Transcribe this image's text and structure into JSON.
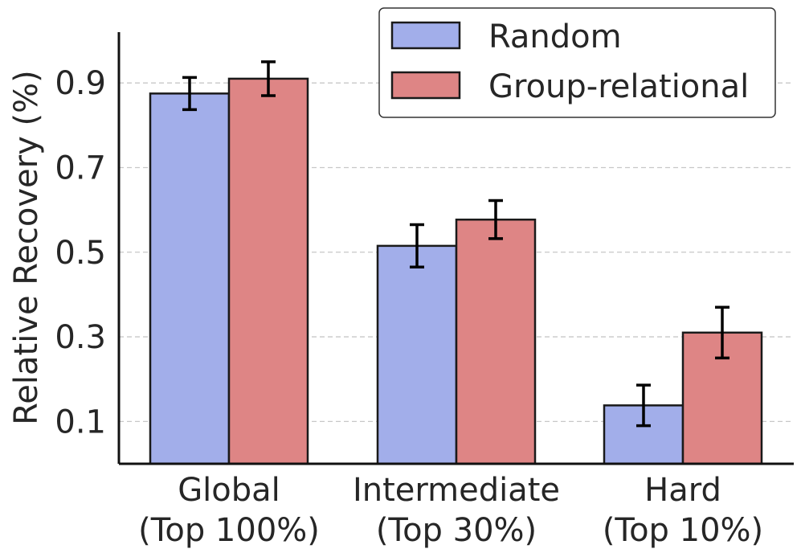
{
  "chart_data": {
    "type": "bar",
    "title": "",
    "xlabel": "",
    "ylabel": "Relative Recovery (%)",
    "ylim": [
      0,
      1.02
    ],
    "yticks": [
      0.1,
      0.3,
      0.5,
      0.7,
      0.9
    ],
    "ytick_labels": [
      "0.1",
      "0.3",
      "0.5",
      "0.7",
      "0.9"
    ],
    "grid": "y-dashed",
    "categories": [
      [
        "Global",
        "(Top 100%)"
      ],
      [
        "Intermediate",
        "(Top 30%)"
      ],
      [
        "Hard",
        "(Top 10%)"
      ]
    ],
    "series": [
      {
        "name": "Random",
        "color": "#a2aeea",
        "values": [
          0.875,
          0.515,
          0.138
        ],
        "errors": [
          0.038,
          0.05,
          0.048
        ]
      },
      {
        "name": "Group-relational",
        "color": "#de8585",
        "values": [
          0.91,
          0.577,
          0.31
        ],
        "errors": [
          0.04,
          0.045,
          0.06
        ]
      }
    ],
    "legend": {
      "placement": "top-right"
    }
  }
}
